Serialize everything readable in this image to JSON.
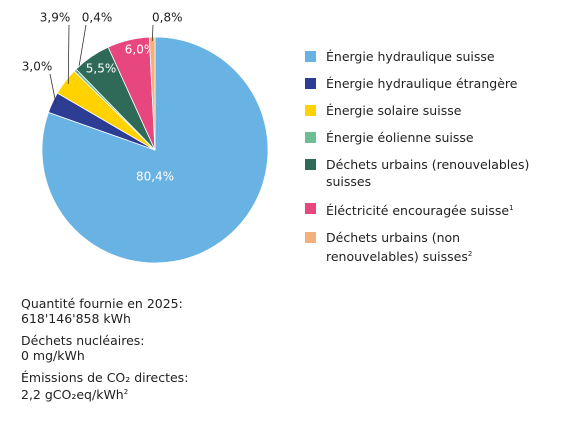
{
  "chart_data": {
    "type": "pie",
    "categories": [
      "Énergie hydraulique suisse",
      "Énergie hydraulique étrangère",
      "Énergie solaire suisse",
      "Énergie éolienne suisse",
      "Déchets urbains (renouvelables) suisses",
      "Éléctricité encouragée suisse",
      "Déchets urbains (non renouvelables) suisses"
    ],
    "notes": [
      null,
      null,
      null,
      null,
      null,
      "1",
      "2"
    ],
    "values": [
      80.4,
      3.0,
      3.9,
      0.4,
      5.5,
      6.0,
      0.8
    ],
    "value_labels": [
      "80,4%",
      "3,0%",
      "3,9%",
      "0,4%",
      "5,5%",
      "6,0%",
      "0,8%"
    ],
    "colors": [
      "#69b3e4",
      "#2e3d94",
      "#ffd200",
      "#6cbf94",
      "#2f6a59",
      "#e8467f",
      "#f3b07a"
    ]
  },
  "info": [
    {
      "label": "Quantité fournie en 2025:",
      "value": "618'146'858 kWh"
    },
    {
      "label": "Déchets nucléaires:",
      "value": "0 mg/kWh"
    },
    {
      "label": "Émissions de CO₂ directes:",
      "value": "2,2 gCO₂eq/kWh",
      "note": "2"
    }
  ]
}
